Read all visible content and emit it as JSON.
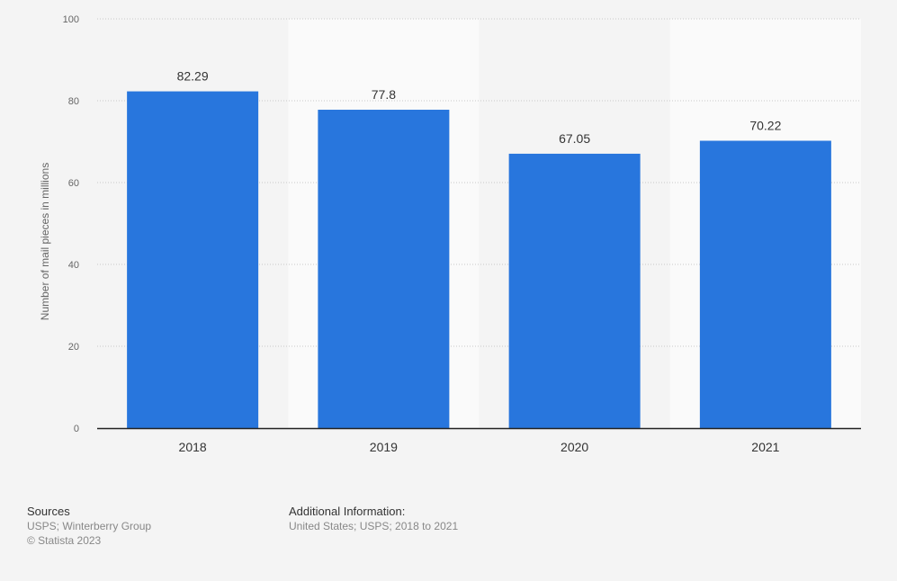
{
  "chart_data": {
    "type": "bar",
    "categories": [
      "2018",
      "2019",
      "2020",
      "2021"
    ],
    "values": [
      82.29,
      77.8,
      67.05,
      70.22
    ],
    "value_labels": [
      "82.29",
      "77.8",
      "67.05",
      "70.22"
    ],
    "ylabel": "Number of mail pieces in millions",
    "xlabel": "",
    "ylim": [
      0,
      100
    ],
    "yticks": [
      0,
      20,
      40,
      60,
      80,
      100
    ],
    "grid": true,
    "bar_color": "#2876dd",
    "alternating_band_color": "#fafafa",
    "background_color": "#f4f4f4"
  },
  "footer": {
    "sources_heading": "Sources",
    "sources_line1": "USPS; Winterberry Group",
    "sources_line2": "© Statista 2023",
    "additional_heading": "Additional Information:",
    "additional_line1": "United States; USPS; 2018 to 2021"
  }
}
